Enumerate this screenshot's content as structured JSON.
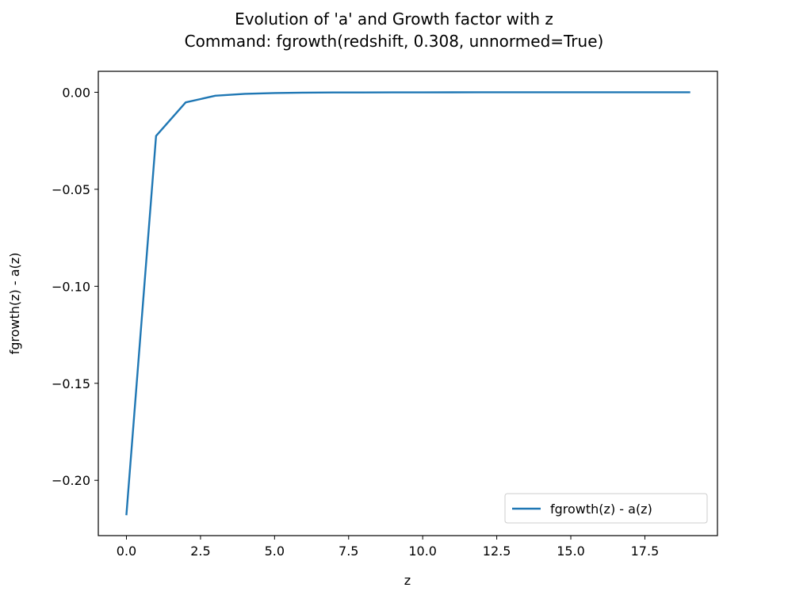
{
  "chart_data": {
    "type": "line",
    "title_lines": [
      "Evolution of 'a' and Growth factor with z",
      "Command: fgrowth(redshift, 0.308, unnormed=True)"
    ],
    "xlabel": "z",
    "ylabel": "fgrowth(z) - a(z)",
    "xlim": [
      -0.95,
      19.95
    ],
    "ylim": [
      -0.2285,
      0.0108
    ],
    "xticks": [
      0.0,
      2.5,
      5.0,
      7.5,
      10.0,
      12.5,
      15.0,
      17.5
    ],
    "xtick_labels": [
      "0.0",
      "2.5",
      "5.0",
      "7.5",
      "10.0",
      "12.5",
      "15.0",
      "17.5"
    ],
    "yticks": [
      0.0,
      -0.05,
      -0.1,
      -0.15,
      -0.2
    ],
    "ytick_labels": [
      "0.00",
      "−0.05",
      "−0.10",
      "−0.15",
      "−0.20"
    ],
    "grid": false,
    "legend_position": "lower-right",
    "series": [
      {
        "name": "fgrowth(z) - a(z)",
        "color": "#1f77b4",
        "x": [
          0,
          1,
          2,
          3,
          4,
          5,
          6,
          7,
          8,
          9,
          10,
          11,
          12,
          13,
          14,
          15,
          16,
          17,
          18,
          19
        ],
        "y": [
          -0.2175,
          -0.0225,
          -0.0052,
          -0.0018,
          -0.0008,
          -0.0004,
          -0.0002,
          -0.0001,
          -8e-05,
          -5e-05,
          -3e-05,
          -2e-05,
          -1e-05,
          -1e-05,
          0,
          0,
          0,
          0,
          0,
          0
        ]
      }
    ]
  }
}
